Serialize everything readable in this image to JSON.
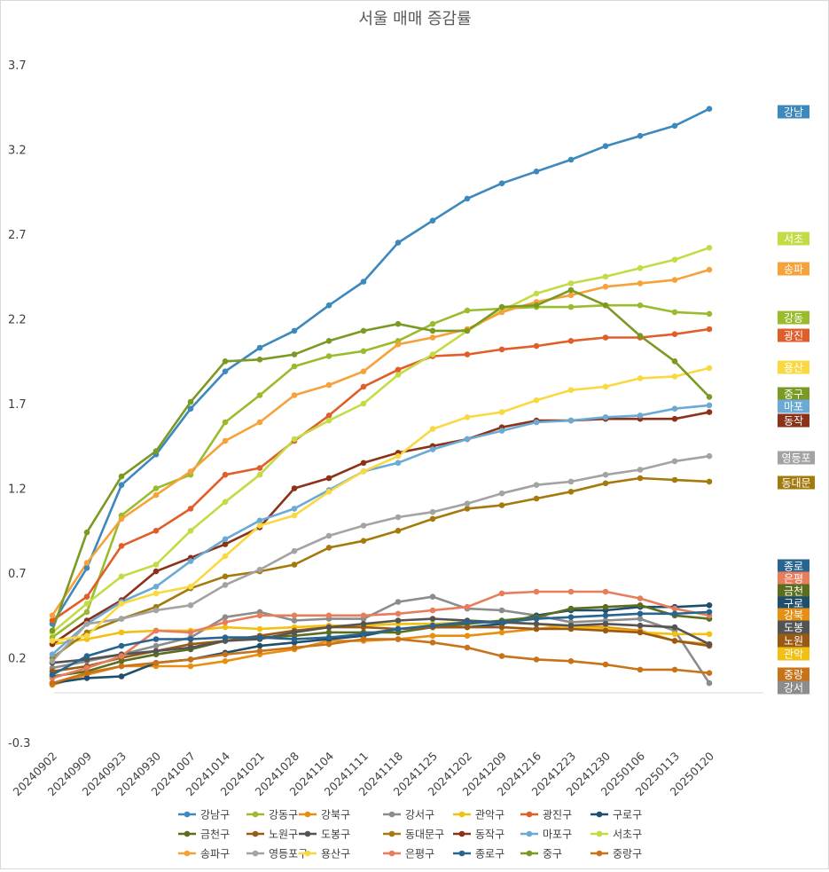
{
  "chart_data": {
    "type": "line",
    "title": "서울 매매 증감률",
    "xlabel": "",
    "ylabel": "",
    "ylim": [
      -0.3,
      3.7
    ],
    "yticks": [
      3.7,
      3.2,
      2.7,
      2.2,
      1.7,
      1.2,
      0.7,
      0.2,
      -0.3
    ],
    "grid": false,
    "legend_position": "bottom",
    "categories": [
      "20240902",
      "20240909",
      "20240923",
      "20240930",
      "20241007",
      "20241014",
      "20241021",
      "20241028",
      "20241104",
      "20241111",
      "20241118",
      "20241125",
      "20241202",
      "20241209",
      "20241216",
      "20241223",
      "20241230",
      "20250106",
      "20250113",
      "20250120"
    ],
    "series": [
      {
        "name": "강남구",
        "color": "#3D88BC",
        "values": [
          0.4,
          0.73,
          1.22,
          1.4,
          1.67,
          1.89,
          2.03,
          2.13,
          2.28,
          2.42,
          2.65,
          2.78,
          2.91,
          3.0,
          3.07,
          3.14,
          3.22,
          3.28,
          3.34,
          3.44
        ]
      },
      {
        "name": "강동구",
        "color": "#9BBB2E",
        "values": [
          0.32,
          0.47,
          1.04,
          1.2,
          1.28,
          1.59,
          1.75,
          1.92,
          1.98,
          2.01,
          2.07,
          2.17,
          2.25,
          2.26,
          2.27,
          2.27,
          2.28,
          2.28,
          2.24,
          2.23
        ]
      },
      {
        "name": "강북구",
        "color": "#E88F12",
        "values": [
          0.04,
          0.1,
          0.15,
          0.15,
          0.15,
          0.18,
          0.22,
          0.25,
          0.3,
          0.3,
          0.31,
          0.33,
          0.33,
          0.35,
          0.37,
          0.39,
          0.38,
          0.36,
          0.3,
          0.28
        ]
      },
      {
        "name": "강서구",
        "color": "#8C8C8C",
        "values": [
          0.14,
          0.18,
          0.22,
          0.27,
          0.32,
          0.44,
          0.47,
          0.42,
          0.43,
          0.43,
          0.53,
          0.56,
          0.49,
          0.48,
          0.45,
          0.41,
          0.42,
          0.43,
          0.36,
          0.05
        ]
      },
      {
        "name": "관악구",
        "color": "#F2C012",
        "values": [
          0.28,
          0.31,
          0.35,
          0.36,
          0.36,
          0.38,
          0.37,
          0.38,
          0.39,
          0.39,
          0.4,
          0.4,
          0.41,
          0.41,
          0.4,
          0.38,
          0.37,
          0.35,
          0.34,
          0.34
        ]
      },
      {
        "name": "광진구",
        "color": "#E05E2A",
        "values": [
          0.42,
          0.56,
          0.86,
          0.95,
          1.08,
          1.28,
          1.32,
          1.48,
          1.63,
          1.8,
          1.9,
          1.98,
          1.99,
          2.02,
          2.04,
          2.07,
          2.09,
          2.09,
          2.11,
          2.14
        ]
      },
      {
        "name": "구로구",
        "color": "#1F4E6E",
        "values": [
          0.05,
          0.08,
          0.09,
          0.17,
          0.19,
          0.23,
          0.27,
          0.29,
          0.31,
          0.33,
          0.37,
          0.38,
          0.38,
          0.4,
          0.45,
          0.48,
          0.48,
          0.5,
          0.5,
          0.51
        ]
      },
      {
        "name": "금천구",
        "color": "#5B6E1E",
        "values": [
          0.09,
          0.12,
          0.18,
          0.22,
          0.25,
          0.3,
          0.32,
          0.33,
          0.35,
          0.35,
          0.35,
          0.38,
          0.4,
          0.42,
          0.44,
          0.49,
          0.5,
          0.51,
          0.45,
          0.43
        ]
      },
      {
        "name": "노원구",
        "color": "#9B5A14",
        "values": [
          0.12,
          0.15,
          0.2,
          0.24,
          0.28,
          0.3,
          0.33,
          0.36,
          0.38,
          0.38,
          0.37,
          0.38,
          0.38,
          0.38,
          0.37,
          0.37,
          0.36,
          0.35,
          0.3,
          0.27
        ]
      },
      {
        "name": "도봉구",
        "color": "#545454",
        "values": [
          0.17,
          0.19,
          0.22,
          0.24,
          0.26,
          0.3,
          0.31,
          0.35,
          0.38,
          0.4,
          0.42,
          0.43,
          0.42,
          0.41,
          0.4,
          0.39,
          0.4,
          0.39,
          0.38,
          0.28
        ]
      },
      {
        "name": "동대문구",
        "color": "#A57A0C",
        "values": [
          0.2,
          0.35,
          0.43,
          0.5,
          0.61,
          0.68,
          0.71,
          0.75,
          0.85,
          0.89,
          0.95,
          1.02,
          1.08,
          1.1,
          1.14,
          1.18,
          1.23,
          1.26,
          1.25,
          1.24
        ]
      },
      {
        "name": "동작구",
        "color": "#8B3218",
        "values": [
          0.28,
          0.42,
          0.54,
          0.71,
          0.79,
          0.87,
          0.97,
          1.2,
          1.26,
          1.35,
          1.41,
          1.45,
          1.49,
          1.56,
          1.6,
          1.6,
          1.61,
          1.61,
          1.61,
          1.65
        ]
      },
      {
        "name": "마포구",
        "color": "#6AAAD4",
        "values": [
          0.22,
          0.4,
          0.53,
          0.62,
          0.77,
          0.9,
          1.01,
          1.08,
          1.19,
          1.3,
          1.35,
          1.43,
          1.49,
          1.54,
          1.59,
          1.6,
          1.62,
          1.63,
          1.67,
          1.69
        ]
      },
      {
        "name": "서초구",
        "color": "#C4DB45",
        "values": [
          0.35,
          0.52,
          0.68,
          0.75,
          0.95,
          1.12,
          1.28,
          1.49,
          1.6,
          1.7,
          1.87,
          1.99,
          2.13,
          2.25,
          2.35,
          2.41,
          2.45,
          2.5,
          2.55,
          2.62
        ]
      },
      {
        "name": "송파구",
        "color": "#F6A23A",
        "values": [
          0.45,
          0.76,
          1.02,
          1.16,
          1.3,
          1.48,
          1.59,
          1.75,
          1.81,
          1.89,
          2.05,
          2.09,
          2.14,
          2.24,
          2.3,
          2.34,
          2.39,
          2.41,
          2.43,
          2.49
        ]
      },
      {
        "name": "영등포구",
        "color": "#A3A3A3",
        "values": [
          0.18,
          0.4,
          0.43,
          0.48,
          0.51,
          0.63,
          0.72,
          0.83,
          0.92,
          0.98,
          1.03,
          1.06,
          1.11,
          1.17,
          1.22,
          1.24,
          1.28,
          1.31,
          1.36,
          1.39
        ]
      },
      {
        "name": "용산구",
        "color": "#FAD842",
        "values": [
          0.3,
          0.33,
          0.52,
          0.58,
          0.62,
          0.8,
          0.98,
          1.04,
          1.18,
          1.3,
          1.39,
          1.55,
          1.62,
          1.65,
          1.72,
          1.78,
          1.8,
          1.85,
          1.86,
          1.91
        ]
      },
      {
        "name": "은평구",
        "color": "#E87D5C",
        "values": [
          0.08,
          0.14,
          0.21,
          0.36,
          0.35,
          0.41,
          0.45,
          0.45,
          0.45,
          0.45,
          0.46,
          0.48,
          0.5,
          0.58,
          0.59,
          0.59,
          0.59,
          0.55,
          0.49,
          0.45
        ]
      },
      {
        "name": "종로구",
        "color": "#27648F",
        "values": [
          0.1,
          0.21,
          0.27,
          0.31,
          0.31,
          0.32,
          0.32,
          0.31,
          0.32,
          0.34,
          0.37,
          0.39,
          0.41,
          0.41,
          0.43,
          0.44,
          0.45,
          0.46,
          0.46,
          0.47
        ]
      },
      {
        "name": "중구",
        "color": "#7A9A24",
        "values": [
          0.36,
          0.94,
          1.27,
          1.42,
          1.71,
          1.95,
          1.96,
          1.99,
          2.07,
          2.13,
          2.17,
          2.13,
          2.13,
          2.27,
          2.28,
          2.37,
          2.28,
          2.1,
          1.95,
          1.74
        ]
      },
      {
        "name": "중랑구",
        "color": "#C8731A",
        "values": [
          0.05,
          0.11,
          0.15,
          0.17,
          0.19,
          0.22,
          0.24,
          0.26,
          0.28,
          0.31,
          0.31,
          0.29,
          0.26,
          0.21,
          0.19,
          0.18,
          0.16,
          0.13,
          0.13,
          0.11
        ]
      }
    ],
    "end_labels": [
      {
        "text": "강남",
        "color": "#3D88BC"
      },
      {
        "text": "서초",
        "color": "#C4DB45"
      },
      {
        "text": "송파",
        "color": "#F6A23A"
      },
      {
        "text": "강동",
        "color": "#9BBB2E"
      },
      {
        "text": "광진",
        "color": "#E05E2A"
      },
      {
        "text": "용산",
        "color": "#FAD842"
      },
      {
        "text": "중구",
        "color": "#7A9A24"
      },
      {
        "text": "마포",
        "color": "#6AAAD4"
      },
      {
        "text": "동작",
        "color": "#8B3218"
      },
      {
        "text": "영등포",
        "color": "#A3A3A3"
      },
      {
        "text": "동대문",
        "color": "#A57A0C"
      },
      {
        "text": "종로",
        "color": "#27648F"
      },
      {
        "text": "은평",
        "color": "#E87D5C"
      },
      {
        "text": "금천",
        "color": "#5B6E1E"
      },
      {
        "text": "구로",
        "color": "#1F4E6E"
      },
      {
        "text": "강북",
        "color": "#E88F12"
      },
      {
        "text": "도봉",
        "color": "#545454"
      },
      {
        "text": "노원",
        "color": "#9B5A14"
      },
      {
        "text": "관악",
        "color": "#F2C012"
      },
      {
        "text": "중랑",
        "color": "#C8731A"
      },
      {
        "text": "강서",
        "color": "#8C8C8C"
      }
    ]
  }
}
